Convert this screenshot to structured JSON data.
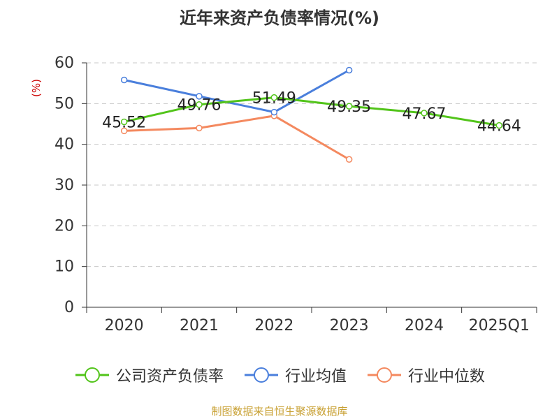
{
  "chart_data": {
    "type": "line",
    "title": "近年来资产负债率情况(%)",
    "y_unit": "(%)",
    "categories": [
      "2020",
      "2021",
      "2022",
      "2023",
      "2024",
      "2025Q1"
    ],
    "ylim": [
      0,
      60
    ],
    "yticks": [
      "0",
      "10",
      "20",
      "30",
      "40",
      "50",
      "60"
    ],
    "grid": true,
    "legend_position": "bottom",
    "series": [
      {
        "name": "公司资产负债率",
        "color": "#52c41a",
        "values": [
          45.52,
          49.76,
          51.49,
          49.35,
          47.67,
          44.64
        ],
        "labels": [
          "45.52",
          "49.76",
          "51.49",
          "49.35",
          "47.67",
          "44.64"
        ]
      },
      {
        "name": "行业均值",
        "color": "#4a7fdc",
        "values": [
          55.8,
          51.8,
          47.9,
          58.2,
          null,
          null
        ]
      },
      {
        "name": "行业中位数",
        "color": "#f4895f",
        "values": [
          43.3,
          44.0,
          47.0,
          36.3,
          null,
          null
        ]
      }
    ]
  },
  "source": "制图数据来自恒生聚源数据库"
}
